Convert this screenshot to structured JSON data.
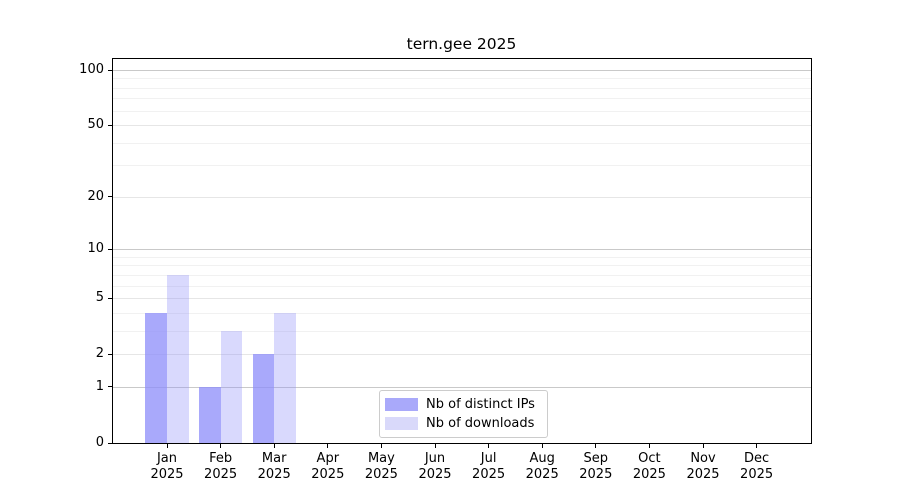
{
  "chart_data": {
    "type": "bar",
    "title": "tern.gee 2025",
    "categories": [
      "Jan 2025",
      "Feb 2025",
      "Mar 2025",
      "Apr 2025",
      "May 2025",
      "Jun 2025",
      "Jul 2025",
      "Aug 2025",
      "Sep 2025",
      "Oct 2025",
      "Nov 2025",
      "Dec 2025"
    ],
    "series": [
      {
        "name": "Nb of distinct IPs",
        "values": [
          4,
          1,
          2,
          0,
          0,
          0,
          0,
          0,
          0,
          0,
          0,
          0
        ],
        "display_color": "#a9a9fa",
        "alpha": 0.75
      },
      {
        "name": "Nb of downloads",
        "values": [
          7,
          3,
          4,
          0,
          0,
          0,
          0,
          0,
          0,
          0,
          0,
          0
        ],
        "display_color": "#d9d9fa",
        "alpha": 0.33
      }
    ],
    "bar_base_color": "#8c8cfa",
    "y_axis": {
      "scale": "log10(1+v)",
      "tick_labels": [
        "0",
        "1",
        "2",
        "5",
        "10",
        "20",
        "50",
        "100"
      ],
      "tick_values": [
        0,
        1,
        2,
        5,
        10,
        20,
        50,
        100
      ],
      "range": [
        0,
        115
      ]
    },
    "grid": true,
    "legend_position": "bottom-center",
    "colors": {
      "grid_major": "#c9c9c9",
      "grid_mid": "#e6e6e6",
      "grid_minor": "#f1f1f1",
      "axis": "#000000",
      "background": "#ffffff"
    }
  }
}
